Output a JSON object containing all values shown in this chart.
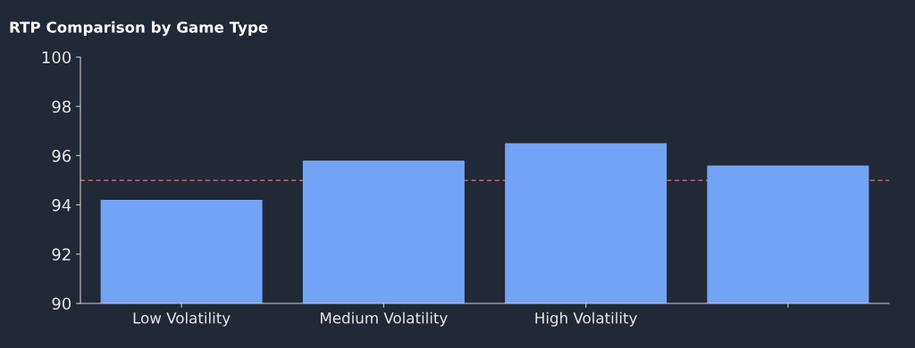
{
  "chart_data": {
    "type": "bar",
    "title": "RTP Comparison by Game Type",
    "categories": [
      "Low Volatility",
      "Medium Volatility",
      "High Volatility",
      null
    ],
    "values": [
      94.2,
      95.8,
      96.5,
      95.6
    ],
    "color": "#72a3f5",
    "ylim": [
      90,
      100
    ],
    "yticks": [
      90,
      92,
      94,
      96,
      98,
      100
    ],
    "grid": false,
    "ref_lines": [
      {
        "axis": "y",
        "value": 95,
        "label": null,
        "color": "#e06c75",
        "line_style": "dashed"
      }
    ]
  }
}
